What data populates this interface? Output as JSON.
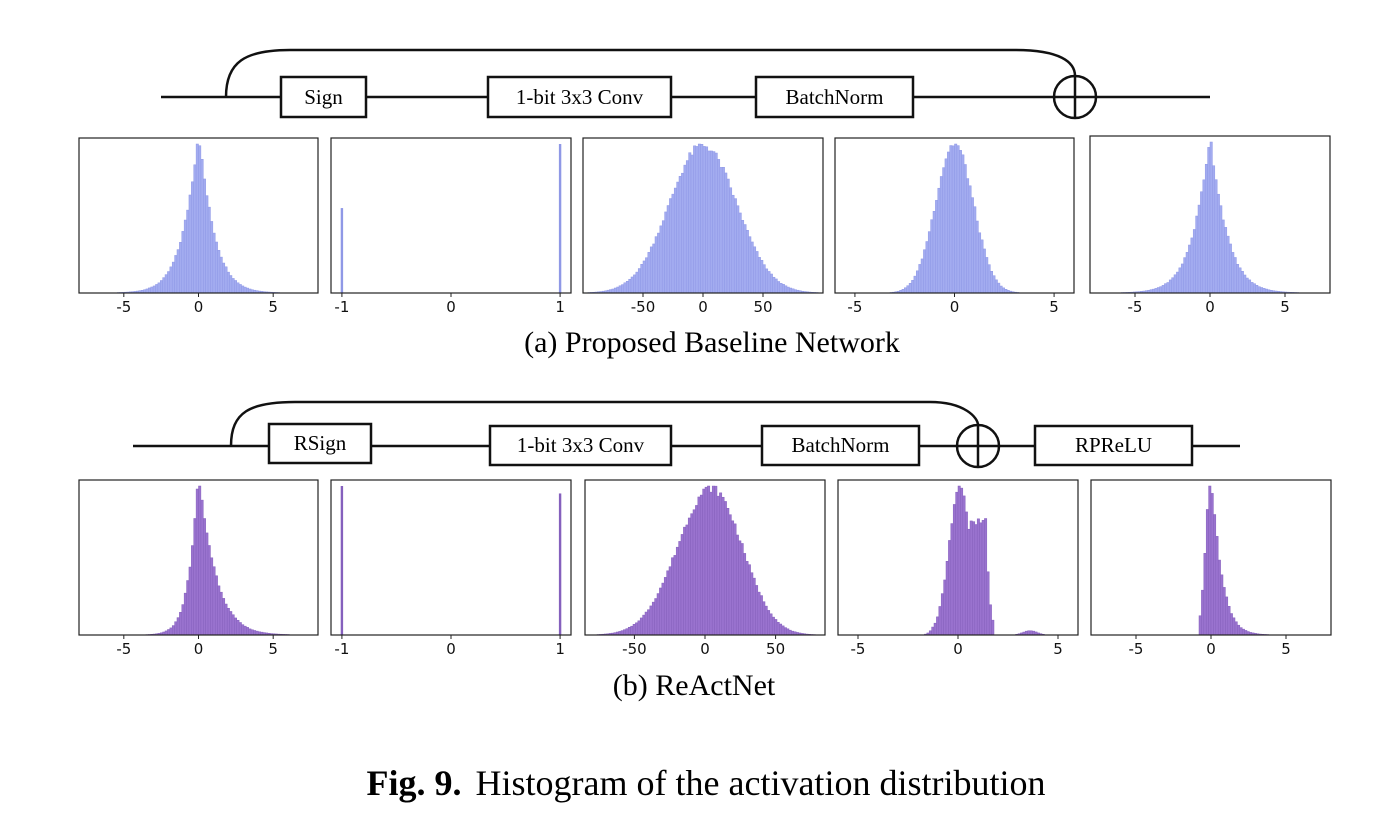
{
  "caption": {
    "label": "Fig. 9.",
    "text": "Histogram of the activation distribution"
  },
  "colors": {
    "baseline": "#a3acf0",
    "baseline_edge": "#8f98e6",
    "reactnet": "#9a73cf",
    "reactnet_edge": "#8560bd"
  },
  "rows": [
    {
      "caption": "(a) Proposed Baseline Network",
      "blocks": [
        "Sign",
        "1-bit 3x3 Conv",
        "BatchNorm"
      ]
    },
    {
      "caption": "(b) ReActNet",
      "blocks": [
        "RSign",
        "1-bit 3x3 Conv",
        "BatchNorm",
        "RPReLU"
      ]
    }
  ],
  "chart_data": [
    {
      "type": "bar",
      "panel": "baseline-input",
      "xlim": [
        -8,
        8
      ],
      "ticks": [
        -5,
        0,
        5
      ],
      "shape": "laplace",
      "mean": 0,
      "scale": 1.2
    },
    {
      "type": "bar",
      "panel": "baseline-sign",
      "xlim": [
        -1.1,
        1.1
      ],
      "ticks": [
        -1,
        0,
        1
      ],
      "shape": "binary",
      "spikes": [
        {
          "x": -1,
          "height": 0.57
        },
        {
          "x": 1,
          "height": 1.0
        }
      ]
    },
    {
      "type": "bar",
      "panel": "baseline-conv",
      "xlim": [
        -100,
        100
      ],
      "ticks": [
        -50,
        0,
        50
      ],
      "shape": "gaussian",
      "mean": 0,
      "std": 28
    },
    {
      "type": "bar",
      "panel": "baseline-bn",
      "xlim": [
        -6,
        6
      ],
      "ticks": [
        -5,
        0,
        5
      ],
      "shape": "gaussian",
      "mean": 0,
      "std": 0.95
    },
    {
      "type": "bar",
      "panel": "baseline-add",
      "xlim": [
        -8,
        8
      ],
      "ticks": [
        -5,
        0,
        5
      ],
      "shape": "laplace",
      "mean": 0,
      "scale": 1.3
    },
    {
      "type": "bar",
      "panel": "reactnet-input",
      "xlim": [
        -8,
        8
      ],
      "ticks": [
        -5,
        0,
        5
      ],
      "shape": "skewed",
      "mean": 0,
      "scale": 1.0
    },
    {
      "type": "bar",
      "panel": "reactnet-rsign",
      "xlim": [
        -1.1,
        1.1
      ],
      "ticks": [
        -1,
        0,
        1
      ],
      "shape": "binary",
      "spikes": [
        {
          "x": -1,
          "height": 1.0
        },
        {
          "x": 1,
          "height": 0.95
        }
      ]
    },
    {
      "type": "bar",
      "panel": "reactnet-conv",
      "xlim": [
        -85,
        85
      ],
      "ticks": [
        -50,
        0,
        50
      ],
      "shape": "bimodal",
      "modes": [
        -5,
        12
      ],
      "std": 22
    },
    {
      "type": "bar",
      "panel": "reactnet-bn",
      "xlim": [
        -6,
        6
      ],
      "ticks": [
        -5,
        0,
        5
      ],
      "shape": "bn_skewed",
      "mean": 0.3,
      "std": 0.7
    },
    {
      "type": "bar",
      "panel": "reactnet-rprelu",
      "xlim": [
        -8,
        8
      ],
      "ticks": [
        -5,
        0,
        5
      ],
      "shape": "rprelu",
      "mean": 0,
      "scale": 0.9
    }
  ]
}
